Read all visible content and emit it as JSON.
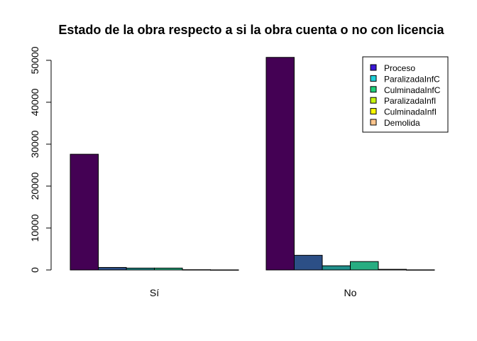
{
  "chart_data": {
    "type": "bar",
    "title": "Estado de la obra respecto a si la obra cuenta o no con licencia",
    "xlabel": "",
    "ylabel": "",
    "categories": [
      "Sí",
      "No"
    ],
    "ylim": [
      0,
      51000
    ],
    "yticks": [
      0,
      10000,
      20000,
      30000,
      40000,
      50000
    ],
    "grid": false,
    "legend_position": "top-right",
    "series": [
      {
        "name": "Proceso",
        "color": "#440154",
        "legend_color": "#3B17D8",
        "values": [
          27600,
          50700
        ]
      },
      {
        "name": "ParalizadaInfC",
        "color": "#2C4F86",
        "legend_color": "#1FD0D9",
        "values": [
          600,
          3500
        ]
      },
      {
        "name": "CulminadaInfC",
        "color": "#21908C",
        "legend_color": "#1FD07A",
        "values": [
          450,
          1000
        ]
      },
      {
        "name": "ParalizadaInfI",
        "color": "#27AD81",
        "legend_color": "#C7F50E",
        "values": [
          450,
          2000
        ]
      },
      {
        "name": "CulminadaInfI",
        "color": "#5EC962",
        "legend_color": "#FAF900",
        "values": [
          60,
          150
        ]
      },
      {
        "name": "Demolida",
        "color": "#FDE725",
        "legend_color": "#FFC68E",
        "values": [
          20,
          30
        ]
      }
    ]
  }
}
